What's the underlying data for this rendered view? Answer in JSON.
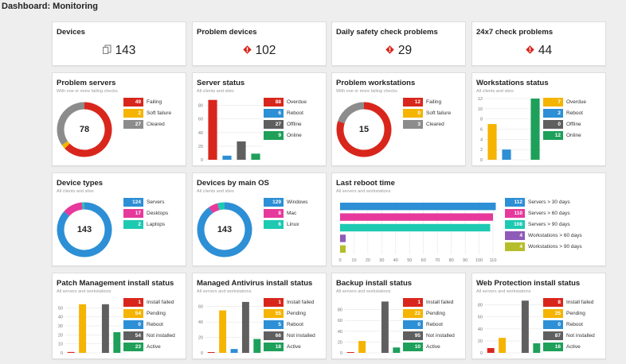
{
  "page_title": "Dashboard: Monitoring",
  "colors": {
    "red": "#d9261c",
    "orange": "#f5b400",
    "gray": "#8c8c8c",
    "blue": "#2d8fd5",
    "green": "#1ea05a",
    "teal": "#1ec9b2",
    "pink": "#e6399b",
    "purple": "#8e5bb8",
    "olive": "#b5bd2a",
    "dark": "#5f5f5f"
  },
  "summary": [
    {
      "title": "Devices",
      "value": "143",
      "icon": "devices-icon"
    },
    {
      "title": "Problem devices",
      "value": "102",
      "icon": "alert-icon"
    },
    {
      "title": "Daily safety check problems",
      "value": "29",
      "icon": "alert-icon"
    },
    {
      "title": "24x7 check problems",
      "value": "44",
      "icon": "alert-icon"
    }
  ],
  "problem_servers": {
    "title": "Problem servers",
    "subtitle": "With one or more failing checks",
    "center": "78",
    "chart_data": {
      "type": "pie",
      "values": [
        49,
        2,
        27
      ],
      "labels": [
        "Failing",
        "Soft failure",
        "Cleared"
      ],
      "colors": [
        "#d9261c",
        "#f5b400",
        "#8c8c8c"
      ]
    },
    "legend": [
      {
        "value": "49",
        "label": "Failing",
        "color": "#d9261c"
      },
      {
        "value": "2",
        "label": "Soft failure",
        "color": "#f5b400"
      },
      {
        "value": "27",
        "label": "Cleared",
        "color": "#8c8c8c"
      }
    ]
  },
  "server_status": {
    "title": "Server status",
    "subtitle": "All clients and sites",
    "chart_data": {
      "type": "bar",
      "values": [
        88,
        6,
        27,
        9
      ],
      "categories": [
        "Overdue",
        "Reboot",
        "Offline",
        "Online"
      ],
      "colors": [
        "#d9261c",
        "#2d8fd5",
        "#5f5f5f",
        "#1ea05a"
      ],
      "ylim": [
        0,
        90
      ],
      "ticks": [
        "80",
        "60",
        "40",
        "20",
        "0"
      ],
      "tick_values": [
        80,
        60,
        40,
        20,
        0
      ]
    },
    "legend": [
      {
        "value": "88",
        "label": "Overdue",
        "color": "#d9261c"
      },
      {
        "value": "6",
        "label": "Reboot",
        "color": "#2d8fd5"
      },
      {
        "value": "27",
        "label": "Offline",
        "color": "#5f5f5f"
      },
      {
        "value": "9",
        "label": "Online",
        "color": "#1ea05a"
      }
    ]
  },
  "problem_workstations": {
    "title": "Problem workstations",
    "subtitle": "With one or more failing checks",
    "center": "15",
    "chart_data": {
      "type": "pie",
      "values": [
        12,
        0,
        3
      ],
      "labels": [
        "Failing",
        "Soft failure",
        "Cleared"
      ],
      "colors": [
        "#d9261c",
        "#f5b400",
        "#8c8c8c"
      ]
    },
    "legend": [
      {
        "value": "12",
        "label": "Failing",
        "color": "#d9261c"
      },
      {
        "value": "0",
        "label": "Soft failure",
        "color": "#f5b400"
      },
      {
        "value": "3",
        "label": "Cleared",
        "color": "#8c8c8c"
      }
    ]
  },
  "workstations_status": {
    "title": "Workstations status",
    "subtitle": "All clients and sites",
    "chart_data": {
      "type": "bar",
      "values": [
        7,
        2,
        0,
        12
      ],
      "categories": [
        "Overdue",
        "Reboot",
        "Offline",
        "Online"
      ],
      "colors": [
        "#f5b400",
        "#2d8fd5",
        "#5f5f5f",
        "#1ea05a"
      ],
      "ylim": [
        0,
        12
      ],
      "ticks": [
        "12",
        "10",
        "8",
        "6",
        "4",
        "2",
        "0"
      ],
      "tick_values": [
        12,
        10,
        8,
        6,
        4,
        2,
        0
      ]
    },
    "legend": [
      {
        "value": "7",
        "label": "Overdue",
        "color": "#f5b400"
      },
      {
        "value": "2",
        "label": "Reboot",
        "color": "#2d8fd5"
      },
      {
        "value": "0",
        "label": "Offline",
        "color": "#5f5f5f"
      },
      {
        "value": "12",
        "label": "Online",
        "color": "#1ea05a"
      }
    ]
  },
  "device_types": {
    "title": "Device types",
    "subtitle": "All clients and sites",
    "center": "143",
    "chart_data": {
      "type": "pie",
      "values": [
        124,
        17,
        2
      ],
      "labels": [
        "Servers",
        "Desktops",
        "Laptops"
      ],
      "colors": [
        "#2d8fd5",
        "#e6399b",
        "#1ec9b2"
      ]
    },
    "legend": [
      {
        "value": "124",
        "label": "Servers",
        "color": "#2d8fd5"
      },
      {
        "value": "17",
        "label": "Desktops",
        "color": "#e6399b"
      },
      {
        "value": "2",
        "label": "Laptops",
        "color": "#1ec9b2"
      }
    ]
  },
  "devices_by_os": {
    "title": "Devices by main OS",
    "subtitle": "All clients and sites",
    "center": "143",
    "chart_data": {
      "type": "pie",
      "values": [
        129,
        8,
        6
      ],
      "labels": [
        "Windows",
        "Mac",
        "Linux"
      ],
      "colors": [
        "#2d8fd5",
        "#e6399b",
        "#1ec9b2"
      ]
    },
    "legend": [
      {
        "value": "129",
        "label": "Windows",
        "color": "#2d8fd5"
      },
      {
        "value": "8",
        "label": "Mac",
        "color": "#e6399b"
      },
      {
        "value": "6",
        "label": "Linux",
        "color": "#1ec9b2"
      }
    ]
  },
  "last_reboot": {
    "title": "Last reboot time",
    "subtitle": "All servers and workstations",
    "chart_data": {
      "type": "bar",
      "orientation": "horizontal",
      "values": [
        112,
        110,
        108,
        4,
        4
      ],
      "categories": [
        "Servers > 30 days",
        "Servers > 60 days",
        "Servers > 90 days",
        "Workstations > 60 days",
        "Workstations > 90 days"
      ],
      "colors": [
        "#2d8fd5",
        "#e6399b",
        "#1ec9b2",
        "#8e5bb8",
        "#b5bd2a"
      ],
      "xlim": [
        0,
        110
      ],
      "ticks": [
        "0",
        "10",
        "20",
        "30",
        "40",
        "50",
        "60",
        "70",
        "80",
        "90",
        "100",
        "110"
      ]
    },
    "legend": [
      {
        "value": "112",
        "label": "Servers > 30 days",
        "color": "#2d8fd5"
      },
      {
        "value": "110",
        "label": "Servers > 60 days",
        "color": "#e6399b"
      },
      {
        "value": "108",
        "label": "Servers > 90 days",
        "color": "#1ec9b2"
      },
      {
        "value": "4",
        "label": "Workstations > 60 days",
        "color": "#8e5bb8"
      },
      {
        "value": "4",
        "label": "Workstations > 90 days",
        "color": "#b5bd2a"
      }
    ]
  },
  "patch": {
    "title": "Patch Management install status",
    "subtitle": "All servers and workstations",
    "chart_data": {
      "type": "bar",
      "values": [
        1,
        54,
        0,
        54,
        23
      ],
      "categories": [
        "Install failed",
        "Pending",
        "Reboot",
        "Not installed",
        "Active"
      ],
      "colors": [
        "#d9261c",
        "#f5b400",
        "#2d8fd5",
        "#5f5f5f",
        "#1ea05a"
      ],
      "ylim": [
        0,
        60
      ],
      "ticks": [
        "50",
        "40",
        "30",
        "20",
        "10",
        "0"
      ],
      "tick_values": [
        50,
        40,
        30,
        20,
        10,
        0
      ]
    },
    "legend": [
      {
        "value": "1",
        "label": "Install failed",
        "color": "#d9261c"
      },
      {
        "value": "54",
        "label": "Pending",
        "color": "#f5b400"
      },
      {
        "value": "0",
        "label": "Reboot",
        "color": "#2d8fd5"
      },
      {
        "value": "54",
        "label": "Not installed",
        "color": "#5f5f5f"
      },
      {
        "value": "23",
        "label": "Active",
        "color": "#1ea05a"
      }
    ]
  },
  "antivirus": {
    "title": "Managed Antivirus install status",
    "subtitle": "All servers and workstations",
    "chart_data": {
      "type": "bar",
      "values": [
        1,
        55,
        5,
        66,
        18
      ],
      "categories": [
        "Install failed",
        "Pending",
        "Reboot",
        "Not installed",
        "Active"
      ],
      "colors": [
        "#d9261c",
        "#f5b400",
        "#2d8fd5",
        "#5f5f5f",
        "#1ea05a"
      ],
      "ylim": [
        0,
        70
      ],
      "ticks": [
        "60",
        "40",
        "20",
        "0"
      ],
      "tick_values": [
        60,
        40,
        20,
        0
      ]
    },
    "legend": [
      {
        "value": "1",
        "label": "Install failed",
        "color": "#d9261c"
      },
      {
        "value": "55",
        "label": "Pending",
        "color": "#f5b400"
      },
      {
        "value": "5",
        "label": "Reboot",
        "color": "#2d8fd5"
      },
      {
        "value": "66",
        "label": "Not installed",
        "color": "#5f5f5f"
      },
      {
        "value": "18",
        "label": "Active",
        "color": "#1ea05a"
      }
    ]
  },
  "backup": {
    "title": "Backup install status",
    "subtitle": "All servers and workstations",
    "chart_data": {
      "type": "bar",
      "values": [
        1,
        22,
        0,
        95,
        10
      ],
      "categories": [
        "Install failed",
        "Pending",
        "Reboot",
        "Not installed",
        "Active"
      ],
      "colors": [
        "#d9261c",
        "#f5b400",
        "#2d8fd5",
        "#5f5f5f",
        "#1ea05a"
      ],
      "ylim": [
        0,
        100
      ],
      "ticks": [
        "80",
        "60",
        "40",
        "20",
        "0"
      ],
      "tick_values": [
        80,
        60,
        40,
        20,
        0
      ]
    },
    "legend": [
      {
        "value": "1",
        "label": "Install failed",
        "color": "#d9261c"
      },
      {
        "value": "22",
        "label": "Pending",
        "color": "#f5b400"
      },
      {
        "value": "0",
        "label": "Reboot",
        "color": "#2d8fd5"
      },
      {
        "value": "95",
        "label": "Not installed",
        "color": "#5f5f5f"
      },
      {
        "value": "10",
        "label": "Active",
        "color": "#1ea05a"
      }
    ]
  },
  "webprotection": {
    "title": "Web Protection install status",
    "subtitle": "All servers and workstations",
    "chart_data": {
      "type": "bar",
      "values": [
        8,
        25,
        0,
        87,
        16
      ],
      "categories": [
        "Install failed",
        "Pending",
        "Reboot",
        "Not installed",
        "Active"
      ],
      "colors": [
        "#d9261c",
        "#f5b400",
        "#2d8fd5",
        "#5f5f5f",
        "#1ea05a"
      ],
      "ylim": [
        0,
        90
      ],
      "ticks": [
        "80",
        "60",
        "40",
        "20",
        "0"
      ],
      "tick_values": [
        80,
        60,
        40,
        20,
        0
      ]
    },
    "legend": [
      {
        "value": "8",
        "label": "Install failed",
        "color": "#d9261c"
      },
      {
        "value": "25",
        "label": "Pending",
        "color": "#f5b400"
      },
      {
        "value": "0",
        "label": "Reboot",
        "color": "#2d8fd5"
      },
      {
        "value": "87",
        "label": "Not installed",
        "color": "#5f5f5f"
      },
      {
        "value": "16",
        "label": "Active",
        "color": "#1ea05a"
      }
    ]
  }
}
